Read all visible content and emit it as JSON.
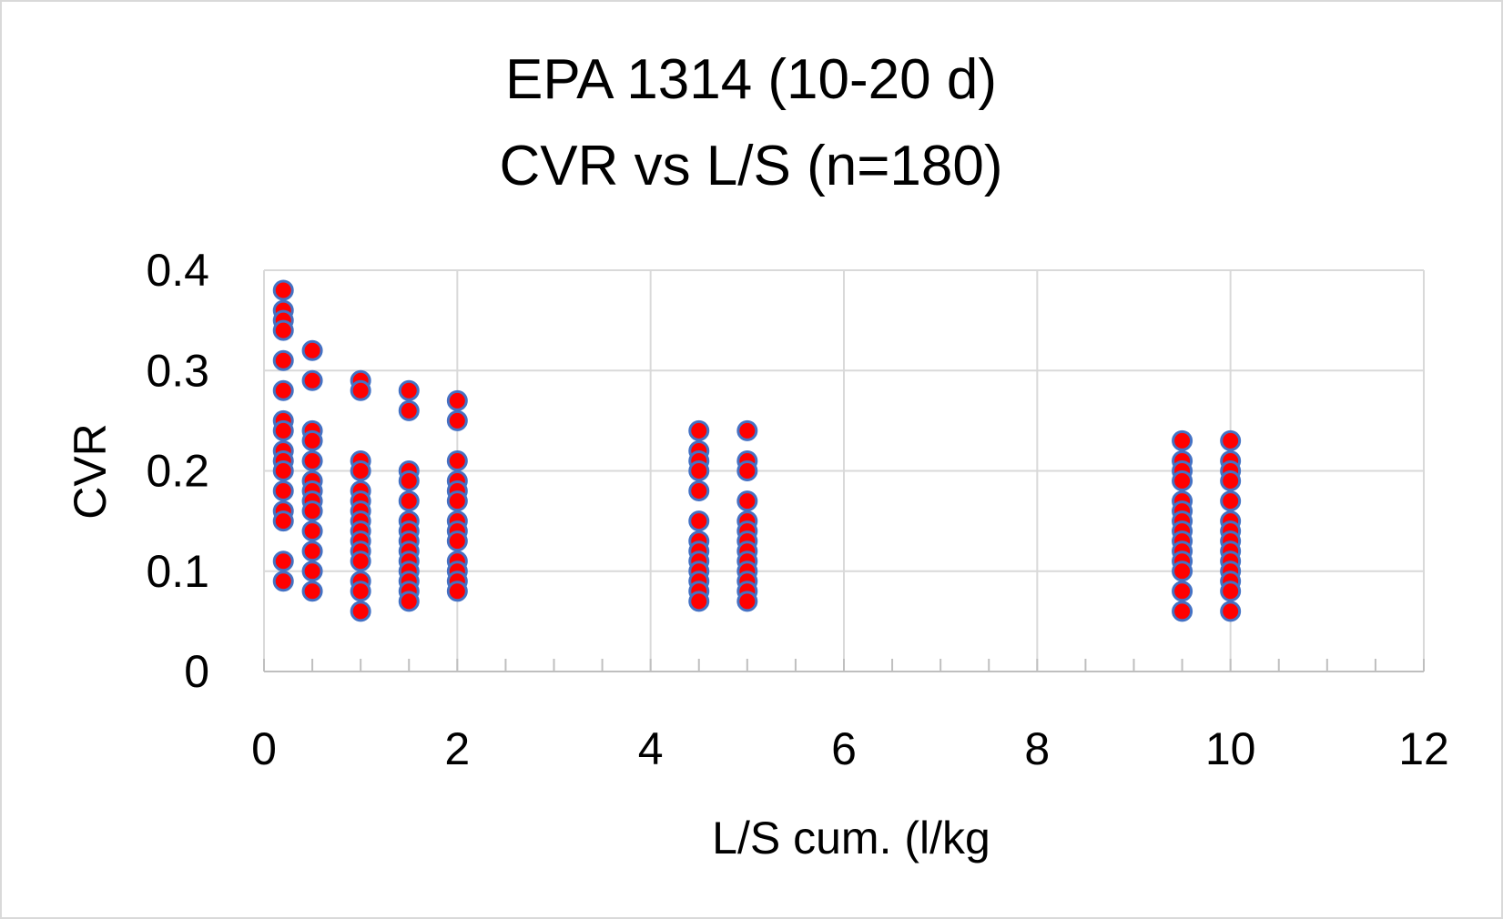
{
  "chart_data": {
    "type": "scatter",
    "title_line1": "EPA 1314 (10-20 d)",
    "title_line2": "CVR vs L/S (n=180)",
    "xlabel": "L/S cum. (l/kg",
    "ylabel": "CVR",
    "xlim": [
      0,
      12
    ],
    "ylim": [
      0,
      0.4
    ],
    "x_ticks": [
      "0",
      "2",
      "4",
      "6",
      "8",
      "10",
      "12"
    ],
    "y_ticks": [
      "0",
      "0.1",
      "0.2",
      "0.3",
      "0.4"
    ],
    "grid": true,
    "legend": "none",
    "marker_fill": "#ff0000",
    "marker_edge": "#4472c4",
    "series": [
      {
        "points": [
          [
            0.2,
            0.38
          ],
          [
            0.2,
            0.36
          ],
          [
            0.2,
            0.35
          ],
          [
            0.2,
            0.34
          ],
          [
            0.2,
            0.31
          ],
          [
            0.2,
            0.28
          ],
          [
            0.2,
            0.25
          ],
          [
            0.2,
            0.24
          ],
          [
            0.2,
            0.22
          ],
          [
            0.2,
            0.21
          ],
          [
            0.2,
            0.2
          ],
          [
            0.2,
            0.18
          ],
          [
            0.2,
            0.16
          ],
          [
            0.2,
            0.15
          ],
          [
            0.2,
            0.11
          ],
          [
            0.2,
            0.09
          ],
          [
            0.5,
            0.32
          ],
          [
            0.5,
            0.29
          ],
          [
            0.5,
            0.24
          ],
          [
            0.5,
            0.23
          ],
          [
            0.5,
            0.21
          ],
          [
            0.5,
            0.19
          ],
          [
            0.5,
            0.18
          ],
          [
            0.5,
            0.17
          ],
          [
            0.5,
            0.16
          ],
          [
            0.5,
            0.14
          ],
          [
            0.5,
            0.12
          ],
          [
            0.5,
            0.1
          ],
          [
            0.5,
            0.08
          ],
          [
            1.0,
            0.29
          ],
          [
            1.0,
            0.28
          ],
          [
            1.0,
            0.21
          ],
          [
            1.0,
            0.2
          ],
          [
            1.0,
            0.18
          ],
          [
            1.0,
            0.17
          ],
          [
            1.0,
            0.16
          ],
          [
            1.0,
            0.15
          ],
          [
            1.0,
            0.14
          ],
          [
            1.0,
            0.13
          ],
          [
            1.0,
            0.12
          ],
          [
            1.0,
            0.11
          ],
          [
            1.0,
            0.09
          ],
          [
            1.0,
            0.08
          ],
          [
            1.0,
            0.06
          ],
          [
            1.5,
            0.28
          ],
          [
            1.5,
            0.26
          ],
          [
            1.5,
            0.2
          ],
          [
            1.5,
            0.19
          ],
          [
            1.5,
            0.17
          ],
          [
            1.5,
            0.15
          ],
          [
            1.5,
            0.14
          ],
          [
            1.5,
            0.13
          ],
          [
            1.5,
            0.12
          ],
          [
            1.5,
            0.11
          ],
          [
            1.5,
            0.1
          ],
          [
            1.5,
            0.09
          ],
          [
            1.5,
            0.08
          ],
          [
            1.5,
            0.07
          ],
          [
            2.0,
            0.27
          ],
          [
            2.0,
            0.25
          ],
          [
            2.0,
            0.21
          ],
          [
            2.0,
            0.19
          ],
          [
            2.0,
            0.18
          ],
          [
            2.0,
            0.17
          ],
          [
            2.0,
            0.15
          ],
          [
            2.0,
            0.14
          ],
          [
            2.0,
            0.13
          ],
          [
            2.0,
            0.11
          ],
          [
            2.0,
            0.1
          ],
          [
            2.0,
            0.09
          ],
          [
            2.0,
            0.08
          ],
          [
            4.5,
            0.24
          ],
          [
            4.5,
            0.22
          ],
          [
            4.5,
            0.21
          ],
          [
            4.5,
            0.2
          ],
          [
            4.5,
            0.18
          ],
          [
            4.5,
            0.15
          ],
          [
            4.5,
            0.13
          ],
          [
            4.5,
            0.12
          ],
          [
            4.5,
            0.11
          ],
          [
            4.5,
            0.1
          ],
          [
            4.5,
            0.09
          ],
          [
            4.5,
            0.08
          ],
          [
            4.5,
            0.07
          ],
          [
            5.0,
            0.24
          ],
          [
            5.0,
            0.21
          ],
          [
            5.0,
            0.2
          ],
          [
            5.0,
            0.17
          ],
          [
            5.0,
            0.15
          ],
          [
            5.0,
            0.14
          ],
          [
            5.0,
            0.13
          ],
          [
            5.0,
            0.12
          ],
          [
            5.0,
            0.11
          ],
          [
            5.0,
            0.1
          ],
          [
            5.0,
            0.09
          ],
          [
            5.0,
            0.08
          ],
          [
            5.0,
            0.07
          ],
          [
            9.5,
            0.23
          ],
          [
            9.5,
            0.21
          ],
          [
            9.5,
            0.2
          ],
          [
            9.5,
            0.19
          ],
          [
            9.5,
            0.17
          ],
          [
            9.5,
            0.16
          ],
          [
            9.5,
            0.15
          ],
          [
            9.5,
            0.14
          ],
          [
            9.5,
            0.13
          ],
          [
            9.5,
            0.12
          ],
          [
            9.5,
            0.11
          ],
          [
            9.5,
            0.1
          ],
          [
            9.5,
            0.08
          ],
          [
            9.5,
            0.06
          ],
          [
            10.0,
            0.23
          ],
          [
            10.0,
            0.21
          ],
          [
            10.0,
            0.2
          ],
          [
            10.0,
            0.19
          ],
          [
            10.0,
            0.17
          ],
          [
            10.0,
            0.15
          ],
          [
            10.0,
            0.14
          ],
          [
            10.0,
            0.13
          ],
          [
            10.0,
            0.12
          ],
          [
            10.0,
            0.11
          ],
          [
            10.0,
            0.1
          ],
          [
            10.0,
            0.09
          ],
          [
            10.0,
            0.08
          ],
          [
            10.0,
            0.06
          ]
        ]
      }
    ]
  }
}
